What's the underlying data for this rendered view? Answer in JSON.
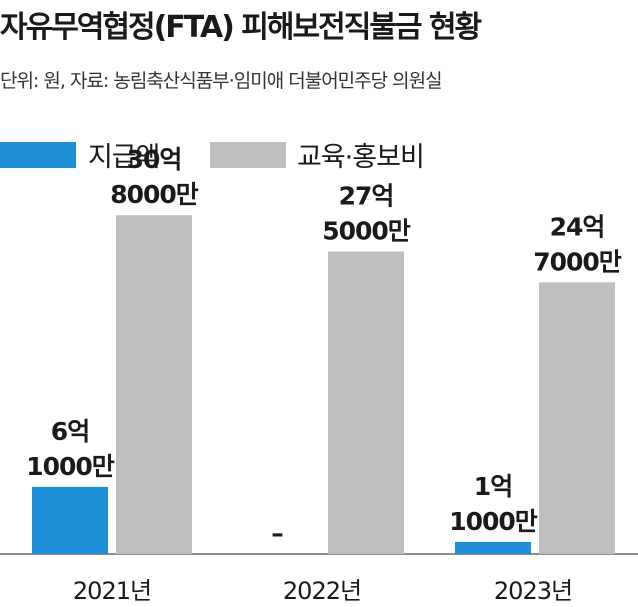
{
  "chart_data": {
    "type": "bar",
    "title": "자유무역협정(FTA) 피해보전직불금 현황",
    "subtitle": "단위: 원, 자료: 농림축산식품부·임미애 더불어민주당 의원실",
    "categories": [
      "2021년",
      "2022년",
      "2023년"
    ],
    "series": [
      {
        "name": "지급액",
        "values": [
          610000000,
          0,
          110000000
        ],
        "labels": [
          [
            "6억",
            "1000만"
          ],
          [
            "–"
          ],
          [
            "1억",
            "1000만"
          ]
        ],
        "color": "#1e8fd6"
      },
      {
        "name": "교육·홍보비",
        "values": [
          3080000000,
          2750000000,
          2470000000
        ],
        "labels": [
          [
            "30억",
            "8000만"
          ],
          [
            "27억",
            "5000만"
          ],
          [
            "24억",
            "7000만"
          ]
        ],
        "color": "#bfbfc0"
      }
    ],
    "xlabel": "",
    "ylabel": "",
    "ylim": [
      0,
      3400000000
    ],
    "grid": false,
    "legend": "top-left"
  }
}
